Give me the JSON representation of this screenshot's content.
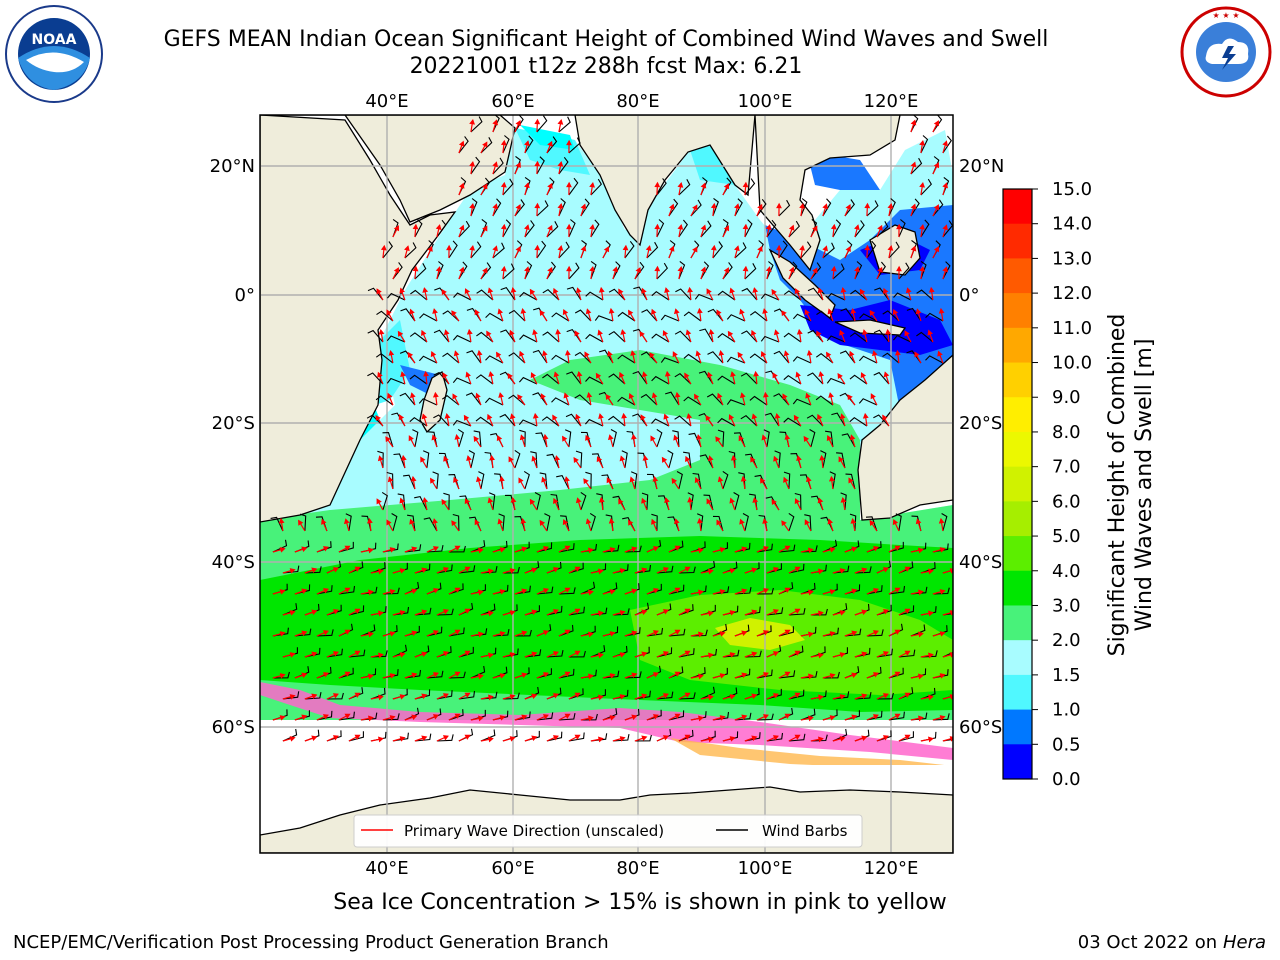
{
  "header": {
    "title_line1": "GEFS MEAN Indian Ocean Significant Height of Combined Wind Waves and Swell",
    "title_line2": "20221001 t12z 288h fcst   Max: 6.21"
  },
  "logos": {
    "left": {
      "name": "noaa-logo",
      "text": "NOAA",
      "ring_text": "NATIONAL OCEANIC AND ATMOSPHERIC ADMINISTRATION · U.S. DEPARTMENT OF COMMERCE"
    },
    "right": {
      "name": "nws-logo",
      "ring_text": "NATIONAL WEATHER SERVICE"
    }
  },
  "map": {
    "lon_labels_top": [
      "40°E",
      "60°E",
      "80°E",
      "100°E",
      "120°E"
    ],
    "lon_labels_bottom": [
      "40°E",
      "60°E",
      "80°E",
      "100°E",
      "120°E"
    ],
    "lat_labels_left": [
      "20°N",
      "0°",
      "20°S",
      "40°S",
      "60°S"
    ],
    "lat_labels_right": [
      "20°N",
      "0°",
      "20°S",
      "40°S",
      "60°S"
    ],
    "colors": {
      "land": "#efeddb",
      "ocean_white": "#ffffff",
      "gridline": "#b0b0b0",
      "wave_arrow": "#ff0000",
      "wind_barb": "#000000"
    }
  },
  "legend": {
    "wave_direction": "Primary Wave Direction (unscaled)",
    "wind_barbs": "Wind Barbs"
  },
  "colorbar": {
    "title_line1": "Significant Height of Combined",
    "title_line2": "Wind Waves and Swell [m]",
    "ticks": [
      "15.0",
      "14.0",
      "13.0",
      "12.0",
      "11.0",
      "10.0",
      "9.0",
      "8.0",
      "7.0",
      "6.0",
      "5.0",
      "4.0",
      "3.0",
      "2.0",
      "1.5",
      "1.0",
      "0.5",
      "0.0"
    ],
    "colors_top_to_bottom": [
      "#ff0000",
      "#ff2a00",
      "#ff5a00",
      "#ff8000",
      "#ffa800",
      "#ffd000",
      "#ffee00",
      "#ecf800",
      "#d0f200",
      "#a6ee00",
      "#5cee00",
      "#00e600",
      "#48f27a",
      "#a8fcff",
      "#50f8ff",
      "#00ffff",
      "#0078ff",
      "#0000ff"
    ]
  },
  "caption": "Sea Ice Concentration > 15% is shown in pink to yellow",
  "footer": {
    "left": "NCEP/EMC/Verification Post Processing Product Generation Branch",
    "right_date": "03 Oct 2022 on ",
    "right_host": "Hera"
  }
}
